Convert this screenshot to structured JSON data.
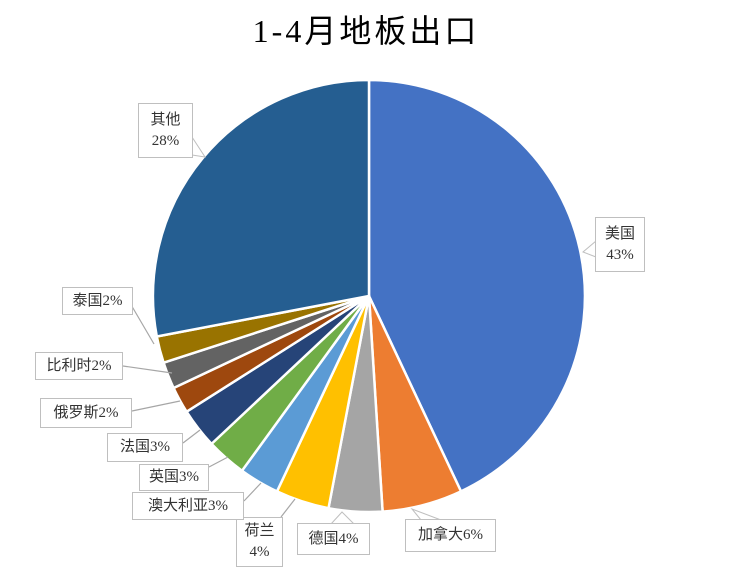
{
  "chart_data": {
    "type": "pie",
    "title": "1-4月地板出口",
    "unit": "%",
    "direction": "clockwise",
    "start_from": "top",
    "legend": "none",
    "background": "#FFFFFF",
    "series": [
      {
        "name": "美国",
        "value": 43,
        "color": "#4472C4",
        "label_lines": [
          "美国",
          "43%"
        ]
      },
      {
        "name": "加拿大",
        "value": 6,
        "color": "#ED7D31",
        "label_lines": [
          "加拿大6%"
        ]
      },
      {
        "name": "德国",
        "value": 4,
        "color": "#A5A5A5",
        "label_lines": [
          "德国4%"
        ]
      },
      {
        "name": "荷兰",
        "value": 4,
        "color": "#FFC000",
        "label_lines": [
          "荷兰",
          "4%"
        ]
      },
      {
        "name": "澳大利亚",
        "value": 3,
        "color": "#5B9BD5",
        "label_lines": [
          "澳大利亚3%"
        ]
      },
      {
        "name": "英国",
        "value": 3,
        "color": "#70AD47",
        "label_lines": [
          "英国3%"
        ]
      },
      {
        "name": "法国",
        "value": 3,
        "color": "#264478",
        "label_lines": [
          "法国3%"
        ]
      },
      {
        "name": "俄罗斯",
        "value": 2,
        "color": "#9E480E",
        "label_lines": [
          "俄罗斯2%"
        ]
      },
      {
        "name": "比利时",
        "value": 2,
        "color": "#636363",
        "label_lines": [
          "比利时2%"
        ]
      },
      {
        "name": "泰国",
        "value": 2,
        "color": "#997300",
        "label_lines": [
          "泰国2%"
        ]
      },
      {
        "name": "其他",
        "value": 28,
        "color": "#255E91",
        "label_lines": [
          "其他",
          "28%"
        ]
      }
    ],
    "style": {
      "slice_stroke": "#FFFFFF",
      "label_box_fill": "#FFFFFF",
      "label_box_border": "#BFBFBF",
      "leader_line": "#A6A6A6",
      "label_text": "#333333",
      "title_text": "#000000"
    }
  }
}
